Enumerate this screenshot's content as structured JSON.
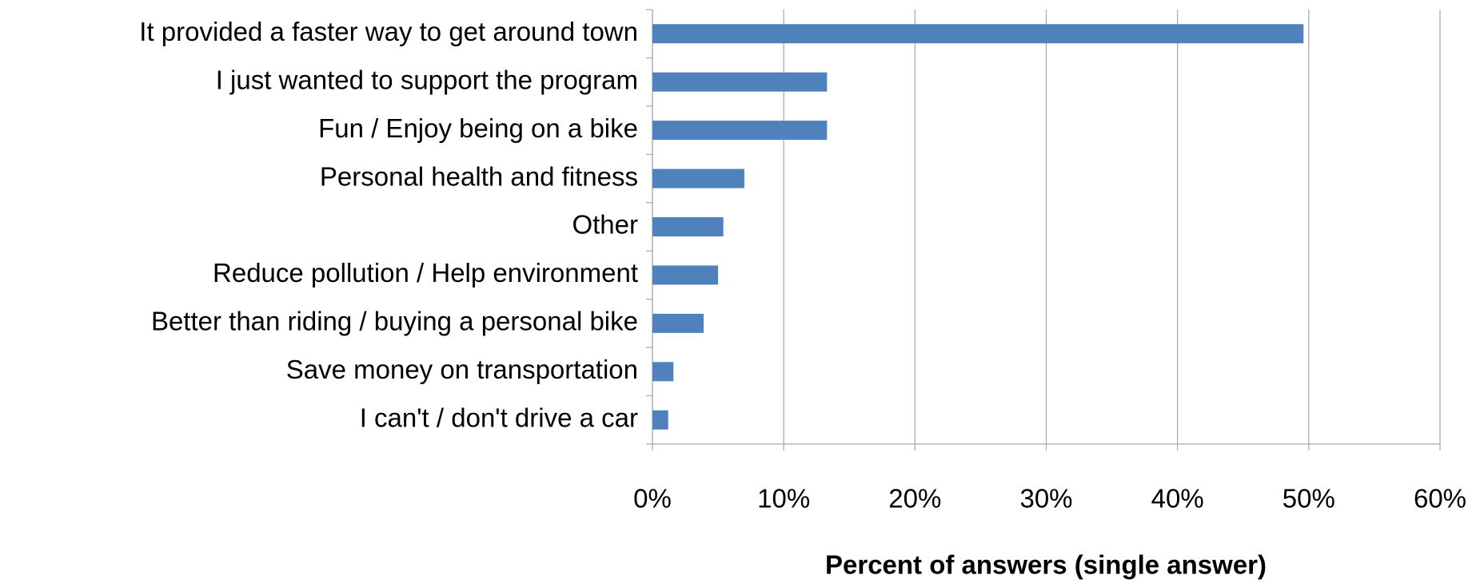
{
  "chart_data": {
    "type": "bar",
    "orientation": "horizontal",
    "categories": [
      "It provided a faster way to get around town",
      "I just wanted to support the program",
      "Fun / Enjoy being on a bike",
      "Personal health and fitness",
      "Other",
      "Reduce pollution / Help environment",
      "Better than riding / buying a personal bike",
      "Save money on transportation",
      "I can't / don't drive a car"
    ],
    "values": [
      49.6,
      13.3,
      13.3,
      7.0,
      5.4,
      5.0,
      3.9,
      1.6,
      1.2
    ],
    "color": "#4f81bd",
    "x_label": "Percent of answers (single answer)",
    "xlim": [
      0,
      60
    ],
    "xticks": [
      {
        "value": 0,
        "label": "0%"
      },
      {
        "value": 10,
        "label": "10%"
      },
      {
        "value": 20,
        "label": "20%"
      },
      {
        "value": 30,
        "label": "30%"
      },
      {
        "value": 40,
        "label": "40%"
      },
      {
        "value": 50,
        "label": "50%"
      },
      {
        "value": 60,
        "label": "60%"
      }
    ],
    "grid": true
  }
}
